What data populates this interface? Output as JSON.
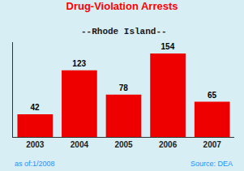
{
  "chart_data": {
    "type": "bar",
    "title": "Drug-Violation Arrests",
    "subtitle": "--Rhode Island--",
    "categories": [
      "2003",
      "2004",
      "2005",
      "2006",
      "2007"
    ],
    "values": [
      42,
      123,
      78,
      154,
      65
    ],
    "color": "#EE0000",
    "ylim": [
      0,
      175
    ],
    "tick_labels": "x",
    "grid": false,
    "data_labels": true,
    "annotations": [
      "as of:1/2008",
      "Source: DEA"
    ]
  }
}
